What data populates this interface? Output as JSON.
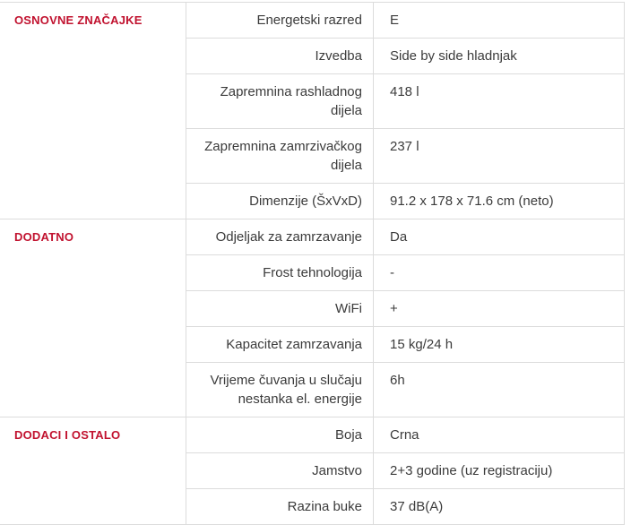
{
  "theme": {
    "accent_red": "#c1122f",
    "text_color": "#3b3b3b",
    "border_color": "#dcdcdc",
    "background": "#ffffff"
  },
  "spec_table": {
    "sections": [
      {
        "title": "OSNOVNE ZNAČAJKE",
        "rows": [
          {
            "label": "Energetski razred",
            "value": "E"
          },
          {
            "label": "Izvedba",
            "value": "Side by side hladnjak"
          },
          {
            "label": "Zapremnina rashladnog dijela",
            "value": "418 l"
          },
          {
            "label": "Zapremnina zamrzivačkog dijela",
            "value": "237 l"
          },
          {
            "label": "Dimenzije (ŠxVxD)",
            "value": "91.2 x 178 x 71.6 cm (neto)"
          }
        ]
      },
      {
        "title": "DODATNO",
        "rows": [
          {
            "label": "Odjeljak za zamrzavanje",
            "value": "Da"
          },
          {
            "label": "Frost tehnologija",
            "value": "-"
          },
          {
            "label": "WiFi",
            "value": "+"
          },
          {
            "label": "Kapacitet zamrzavanja",
            "value": "15 kg/24 h"
          },
          {
            "label": "Vrijeme čuvanja u slučaju nestanka el. energije",
            "value": "6h"
          }
        ]
      },
      {
        "title": "DODACI I OSTALO",
        "rows": [
          {
            "label": "Boja",
            "value": "Crna"
          },
          {
            "label": "Jamstvo",
            "value": "2+3 godine (uz registraciju)"
          },
          {
            "label": "Razina buke",
            "value": "37 dB(A)"
          }
        ]
      }
    ]
  }
}
